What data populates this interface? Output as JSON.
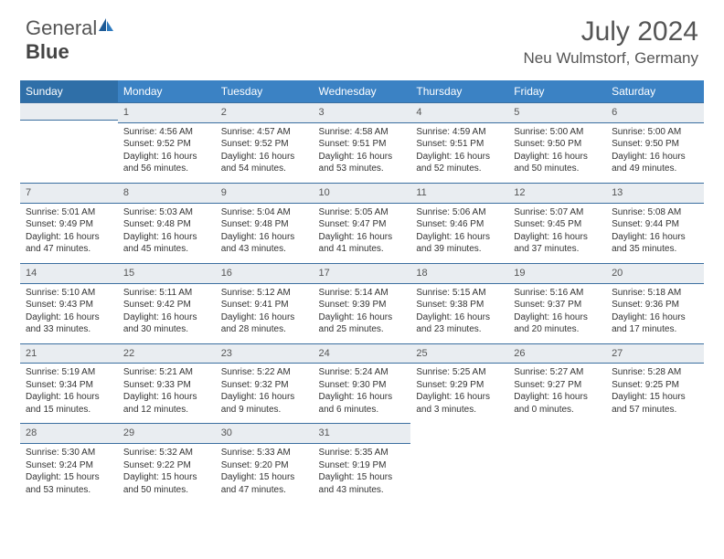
{
  "brand": {
    "part1": "General",
    "part2": "Blue"
  },
  "title": {
    "month": "July 2024",
    "location": "Neu Wulmstorf, Germany"
  },
  "colors": {
    "header_bg": "#3b82c4",
    "header_bg_sunday": "#2f6fa8",
    "daynum_bg": "#e9edf1",
    "border": "#3b6fa0",
    "text": "#333333",
    "title_text": "#555555"
  },
  "weekdays": [
    "Sunday",
    "Monday",
    "Tuesday",
    "Wednesday",
    "Thursday",
    "Friday",
    "Saturday"
  ],
  "start_offset": 1,
  "days": [
    {
      "n": 1,
      "sr": "4:56 AM",
      "ss": "9:52 PM",
      "dl": "16 hours and 56 minutes."
    },
    {
      "n": 2,
      "sr": "4:57 AM",
      "ss": "9:52 PM",
      "dl": "16 hours and 54 minutes."
    },
    {
      "n": 3,
      "sr": "4:58 AM",
      "ss": "9:51 PM",
      "dl": "16 hours and 53 minutes."
    },
    {
      "n": 4,
      "sr": "4:59 AM",
      "ss": "9:51 PM",
      "dl": "16 hours and 52 minutes."
    },
    {
      "n": 5,
      "sr": "5:00 AM",
      "ss": "9:50 PM",
      "dl": "16 hours and 50 minutes."
    },
    {
      "n": 6,
      "sr": "5:00 AM",
      "ss": "9:50 PM",
      "dl": "16 hours and 49 minutes."
    },
    {
      "n": 7,
      "sr": "5:01 AM",
      "ss": "9:49 PM",
      "dl": "16 hours and 47 minutes."
    },
    {
      "n": 8,
      "sr": "5:03 AM",
      "ss": "9:48 PM",
      "dl": "16 hours and 45 minutes."
    },
    {
      "n": 9,
      "sr": "5:04 AM",
      "ss": "9:48 PM",
      "dl": "16 hours and 43 minutes."
    },
    {
      "n": 10,
      "sr": "5:05 AM",
      "ss": "9:47 PM",
      "dl": "16 hours and 41 minutes."
    },
    {
      "n": 11,
      "sr": "5:06 AM",
      "ss": "9:46 PM",
      "dl": "16 hours and 39 minutes."
    },
    {
      "n": 12,
      "sr": "5:07 AM",
      "ss": "9:45 PM",
      "dl": "16 hours and 37 minutes."
    },
    {
      "n": 13,
      "sr": "5:08 AM",
      "ss": "9:44 PM",
      "dl": "16 hours and 35 minutes."
    },
    {
      "n": 14,
      "sr": "5:10 AM",
      "ss": "9:43 PM",
      "dl": "16 hours and 33 minutes."
    },
    {
      "n": 15,
      "sr": "5:11 AM",
      "ss": "9:42 PM",
      "dl": "16 hours and 30 minutes."
    },
    {
      "n": 16,
      "sr": "5:12 AM",
      "ss": "9:41 PM",
      "dl": "16 hours and 28 minutes."
    },
    {
      "n": 17,
      "sr": "5:14 AM",
      "ss": "9:39 PM",
      "dl": "16 hours and 25 minutes."
    },
    {
      "n": 18,
      "sr": "5:15 AM",
      "ss": "9:38 PM",
      "dl": "16 hours and 23 minutes."
    },
    {
      "n": 19,
      "sr": "5:16 AM",
      "ss": "9:37 PM",
      "dl": "16 hours and 20 minutes."
    },
    {
      "n": 20,
      "sr": "5:18 AM",
      "ss": "9:36 PM",
      "dl": "16 hours and 17 minutes."
    },
    {
      "n": 21,
      "sr": "5:19 AM",
      "ss": "9:34 PM",
      "dl": "16 hours and 15 minutes."
    },
    {
      "n": 22,
      "sr": "5:21 AM",
      "ss": "9:33 PM",
      "dl": "16 hours and 12 minutes."
    },
    {
      "n": 23,
      "sr": "5:22 AM",
      "ss": "9:32 PM",
      "dl": "16 hours and 9 minutes."
    },
    {
      "n": 24,
      "sr": "5:24 AM",
      "ss": "9:30 PM",
      "dl": "16 hours and 6 minutes."
    },
    {
      "n": 25,
      "sr": "5:25 AM",
      "ss": "9:29 PM",
      "dl": "16 hours and 3 minutes."
    },
    {
      "n": 26,
      "sr": "5:27 AM",
      "ss": "9:27 PM",
      "dl": "16 hours and 0 minutes."
    },
    {
      "n": 27,
      "sr": "5:28 AM",
      "ss": "9:25 PM",
      "dl": "15 hours and 57 minutes."
    },
    {
      "n": 28,
      "sr": "5:30 AM",
      "ss": "9:24 PM",
      "dl": "15 hours and 53 minutes."
    },
    {
      "n": 29,
      "sr": "5:32 AM",
      "ss": "9:22 PM",
      "dl": "15 hours and 50 minutes."
    },
    {
      "n": 30,
      "sr": "5:33 AM",
      "ss": "9:20 PM",
      "dl": "15 hours and 47 minutes."
    },
    {
      "n": 31,
      "sr": "5:35 AM",
      "ss": "9:19 PM",
      "dl": "15 hours and 43 minutes."
    }
  ],
  "labels": {
    "sunrise": "Sunrise:",
    "sunset": "Sunset:",
    "daylight": "Daylight:"
  }
}
